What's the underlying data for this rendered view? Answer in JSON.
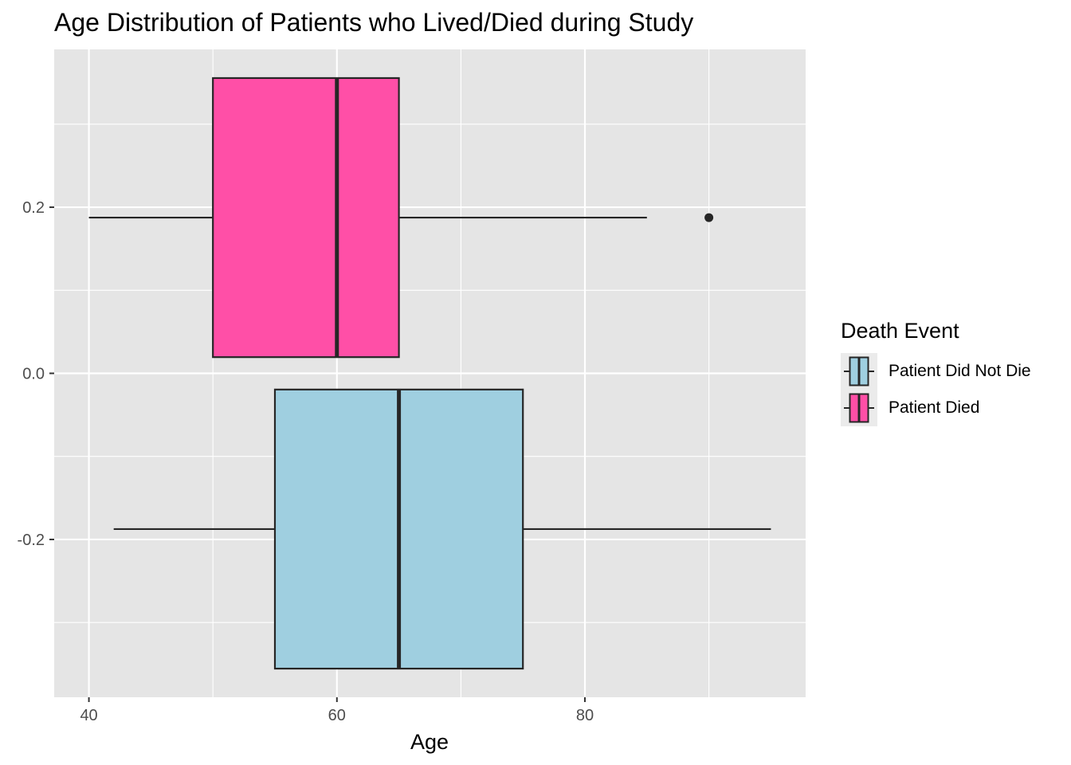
{
  "chart_data": {
    "type": "boxplot",
    "title": "Age Distribution of Patients who Lived/Died during Study",
    "xlabel": "Age",
    "ylabel": "",
    "xlim": [
      37.2,
      97.8
    ],
    "ylim": [
      -0.39,
      0.39
    ],
    "x_ticks": [
      40,
      60,
      80
    ],
    "x_tick_labels": [
      "40",
      "60",
      "80"
    ],
    "x_minor_ticks": [
      50,
      70,
      90
    ],
    "y_ticks": [
      -0.2,
      0.0,
      0.2
    ],
    "y_tick_labels": [
      "-0.2",
      "0.0",
      "0.2"
    ],
    "y_minor_ticks": [
      -0.3,
      -0.1,
      0.1,
      0.3
    ],
    "grid": true,
    "panel_background": "#e5e5e5",
    "legend": {
      "title": "Death Event",
      "position": "right",
      "entries": [
        "Patient Did Not Die",
        "Patient Died"
      ]
    },
    "series": [
      {
        "name": "Patient Did Not Die",
        "color": "#9fcfe0",
        "y_center": -0.1875,
        "y_range": [
          -0.3555,
          -0.0195
        ],
        "whisker_low": 42,
        "q1": 55,
        "median": 65,
        "q3": 75,
        "whisker_high": 95,
        "outliers": []
      },
      {
        "name": "Patient Died",
        "color": "#ff4fa7",
        "y_center": 0.1875,
        "y_range": [
          0.0195,
          0.3555
        ],
        "whisker_low": 40,
        "q1": 50,
        "median": 60,
        "q3": 65,
        "whisker_high": 85,
        "outliers": [
          90
        ]
      }
    ]
  }
}
